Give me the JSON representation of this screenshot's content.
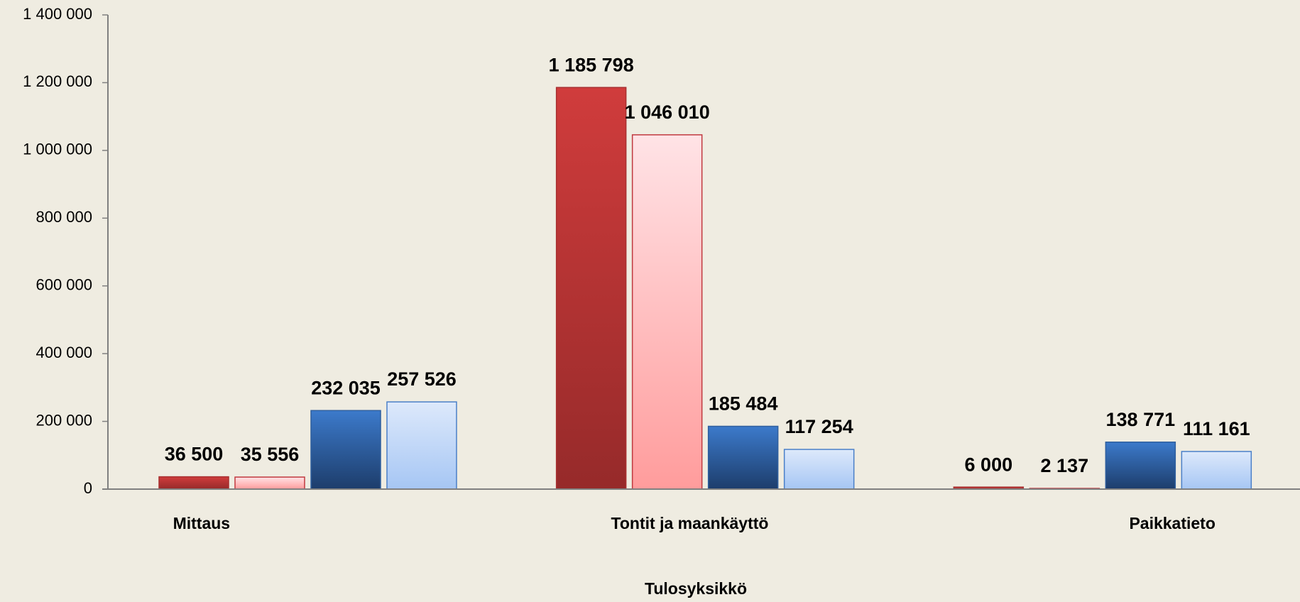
{
  "chart_data": {
    "type": "bar",
    "x_label": "Tulosyksikkö",
    "categories": [
      "Mittaus",
      "Tontit ja maankäyttö",
      "Paikkatieto"
    ],
    "series": [
      {
        "color": "#d03c3c",
        "color2": "#962a2a",
        "border": "#a83030",
        "values": [
          36500,
          1185798,
          6000
        ],
        "value_labels": [
          "36 500",
          "1 185 798",
          "6 000"
        ]
      },
      {
        "color": "#ffe3e6",
        "color2": "#ff9c9c",
        "border": "#c0393f",
        "values": [
          35556,
          1046010,
          2137
        ],
        "value_labels": [
          "35 556",
          "1 046 010",
          "2 137"
        ]
      },
      {
        "color": "#3c7acb",
        "color2": "#1d3d6b",
        "border": "#2f5f9e",
        "values": [
          232035,
          185484,
          138771
        ],
        "value_labels": [
          "232 035",
          "185 484",
          "138 771"
        ]
      },
      {
        "color": "#dde9fb",
        "color2": "#a6c6f4",
        "border": "#4a7fc8",
        "values": [
          257526,
          117254,
          111161
        ],
        "value_labels": [
          "257 526",
          "117 254",
          "111 161"
        ]
      }
    ],
    "ylim": [
      0,
      1400000
    ],
    "yticks": [
      0,
      {
        "value": 200000,
        "label": "200 000"
      },
      {
        "value": 400000,
        "label": "400 000"
      },
      {
        "value": 600000,
        "label": "600 000"
      },
      {
        "value": 800000,
        "label": "800 000"
      },
      {
        "value": 1000000,
        "label": "1 000 000"
      },
      {
        "value": 1200000,
        "label": "1 200 000"
      },
      {
        "value": 1400000,
        "label": "1 400 000"
      }
    ],
    "grid": false
  }
}
